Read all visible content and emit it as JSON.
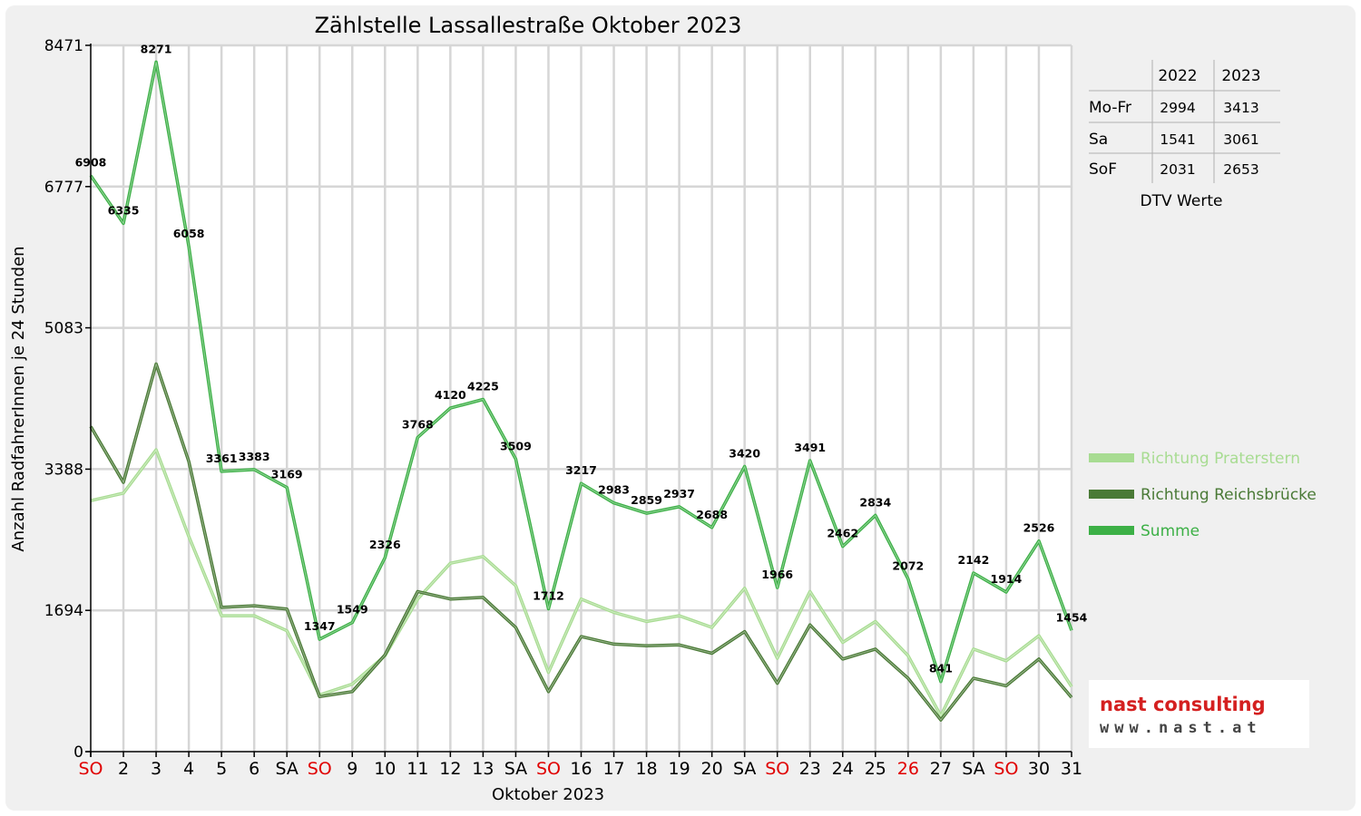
{
  "chart_data": {
    "type": "line",
    "title": "Zählstelle Lassallestraße Oktober 2023",
    "xlabel": "Oktober 2023",
    "ylabel": "Anzahl RadfahrerInnen je 24 Stunden",
    "ylim": [
      0,
      8471
    ],
    "yticks": [
      0,
      1694,
      3388,
      5083,
      6777,
      8471
    ],
    "grid": true,
    "categories": [
      "SO",
      "2",
      "3",
      "4",
      "5",
      "6",
      "SA",
      "SO",
      "9",
      "10",
      "11",
      "12",
      "13",
      "SA",
      "SO",
      "16",
      "17",
      "18",
      "19",
      "20",
      "SA",
      "SO",
      "23",
      "24",
      "25",
      "26",
      "27",
      "SA",
      "SO",
      "30",
      "31"
    ],
    "highlighted_categories": [
      0,
      7,
      14,
      21,
      25,
      28
    ],
    "series": [
      {
        "name": "Richtung Praterstern",
        "color": "#a8dc92",
        "values": [
          3010,
          3100,
          3620,
          2580,
          1630,
          1630,
          1450,
          680,
          810,
          1150,
          1830,
          2260,
          2340,
          1990,
          950,
          1830,
          1670,
          1560,
          1630,
          1490,
          1960,
          1120,
          1920,
          1310,
          1560,
          1150,
          430,
          1230,
          1090,
          1390,
          780
        ]
      },
      {
        "name": "Richtung Reichsbrücke",
        "color": "#4a7a36",
        "values": [
          3900,
          3230,
          4650,
          3480,
          1730,
          1750,
          1710,
          660,
          720,
          1160,
          1920,
          1830,
          1850,
          1490,
          720,
          1380,
          1290,
          1270,
          1280,
          1180,
          1440,
          820,
          1520,
          1110,
          1230,
          880,
          380,
          880,
          790,
          1110,
          650
        ]
      },
      {
        "name": "Summe",
        "color": "#3cb046",
        "values": [
          6908,
          6335,
          8271,
          6058,
          3361,
          3383,
          3169,
          1347,
          1549,
          2326,
          3768,
          4120,
          4225,
          3509,
          1712,
          3217,
          2983,
          2859,
          2937,
          2688,
          3420,
          1966,
          3491,
          2462,
          2834,
          2072,
          841,
          2142,
          1914,
          2526,
          1454
        ]
      }
    ],
    "data_labels": [
      "6908",
      "6335",
      "8271",
      "6058",
      "3361",
      "3383",
      "3169",
      "1347",
      "1549",
      "2326",
      "3768",
      "4120",
      "4225",
      "3509",
      "1712",
      "3217",
      "2983",
      "2859",
      "2937",
      "2688",
      "3420",
      "1966",
      "3491",
      "2462",
      "2834",
      "2072",
      "841",
      "2142",
      "1914",
      "2526",
      "1454"
    ],
    "legend_position": "right"
  },
  "dtv": {
    "caption": "DTV Werte",
    "headers": [
      "2022",
      "2023"
    ],
    "rows": [
      {
        "label": "Mo-Fr",
        "v2022": "2994",
        "v2023": "3413"
      },
      {
        "label": "Sa",
        "v2022": "1541",
        "v2023": "3061"
      },
      {
        "label": "SoF",
        "v2022": "2031",
        "v2023": "2653"
      }
    ]
  },
  "logo": {
    "brand": "nast consulting",
    "url": "www.nast.at",
    "brand_color": "#d42020"
  }
}
